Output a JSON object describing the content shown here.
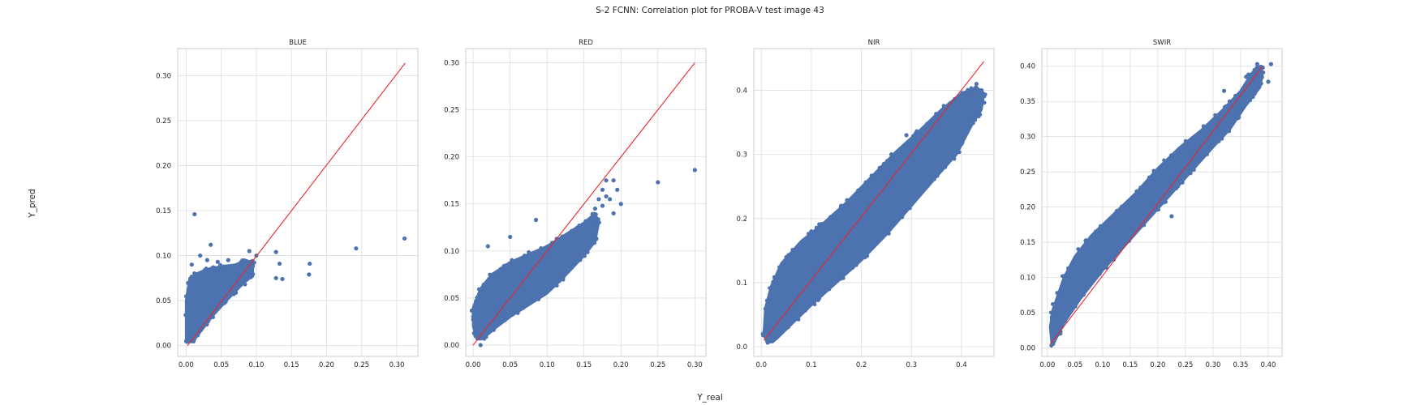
{
  "title": "S-2 FCNN: Correlation plot for PROBA-V test image 43",
  "xlabel": "Y_real",
  "ylabel": "Y_pred",
  "colors": {
    "points": "#4c72b0",
    "reference_line": "#e8262a",
    "grid": "#dddddd"
  },
  "chart_data": [
    {
      "type": "scatter",
      "title": "BLUE",
      "xlim": [
        -0.012,
        0.33
      ],
      "ylim": [
        -0.012,
        0.33
      ],
      "xticks": [
        "0.00",
        "0.05",
        "0.10",
        "0.15",
        "0.20",
        "0.25",
        "0.30"
      ],
      "xtick_values": [
        0,
        0.05,
        0.1,
        0.15,
        0.2,
        0.25,
        0.3
      ],
      "yticks": [
        "0.00",
        "0.05",
        "0.10",
        "0.15",
        "0.20",
        "0.25",
        "0.30"
      ],
      "ytick_values": [
        0,
        0.05,
        0.1,
        0.15,
        0.2,
        0.25,
        0.3
      ],
      "reference_line": [
        [
          0.002,
          0.0
        ],
        [
          0.312,
          0.314
        ]
      ],
      "cloud_outline": [
        [
          0.0,
          0.005
        ],
        [
          0.0,
          0.05
        ],
        [
          0.005,
          0.075
        ],
        [
          0.015,
          0.08
        ],
        [
          0.03,
          0.085
        ],
        [
          0.05,
          0.088
        ],
        [
          0.07,
          0.09
        ],
        [
          0.085,
          0.095
        ],
        [
          0.095,
          0.092
        ],
        [
          0.095,
          0.078
        ],
        [
          0.08,
          0.068
        ],
        [
          0.06,
          0.052
        ],
        [
          0.04,
          0.035
        ],
        [
          0.025,
          0.02
        ],
        [
          0.012,
          0.007
        ],
        [
          0.005,
          0.004
        ]
      ],
      "outliers": [
        [
          0.012,
          0.146
        ],
        [
          0.035,
          0.112
        ],
        [
          0.09,
          0.105
        ],
        [
          0.128,
          0.104
        ],
        [
          0.133,
          0.091
        ],
        [
          0.128,
          0.075
        ],
        [
          0.137,
          0.074
        ],
        [
          0.176,
          0.091
        ],
        [
          0.175,
          0.079
        ],
        [
          0.242,
          0.108
        ],
        [
          0.311,
          0.119
        ],
        [
          0.06,
          0.095
        ],
        [
          0.045,
          0.093
        ],
        [
          0.03,
          0.095
        ],
        [
          0.008,
          0.09
        ],
        [
          0.02,
          0.1
        ],
        [
          0.1,
          0.1
        ],
        [
          0.092,
          0.086
        ]
      ]
    },
    {
      "type": "scatter",
      "title": "RED",
      "xlim": [
        -0.01,
        0.315
      ],
      "ylim": [
        -0.012,
        0.315
      ],
      "xticks": [
        "0.00",
        "0.05",
        "0.10",
        "0.15",
        "0.20",
        "0.25",
        "0.30"
      ],
      "xtick_values": [
        0,
        0.05,
        0.1,
        0.15,
        0.2,
        0.25,
        0.3
      ],
      "yticks": [
        "0.00",
        "0.05",
        "0.10",
        "0.15",
        "0.20",
        "0.25",
        "0.30"
      ],
      "ytick_values": [
        0,
        0.05,
        0.1,
        0.15,
        0.2,
        0.25,
        0.3
      ],
      "reference_line": [
        [
          0.0,
          0.0
        ],
        [
          0.3,
          0.3
        ]
      ],
      "cloud_outline": [
        [
          0.0,
          0.02
        ],
        [
          0.0,
          0.04
        ],
        [
          0.01,
          0.06
        ],
        [
          0.025,
          0.075
        ],
        [
          0.05,
          0.088
        ],
        [
          0.07,
          0.095
        ],
        [
          0.1,
          0.105
        ],
        [
          0.13,
          0.12
        ],
        [
          0.15,
          0.13
        ],
        [
          0.165,
          0.14
        ],
        [
          0.17,
          0.13
        ],
        [
          0.165,
          0.11
        ],
        [
          0.15,
          0.095
        ],
        [
          0.12,
          0.07
        ],
        [
          0.1,
          0.055
        ],
        [
          0.08,
          0.045
        ],
        [
          0.05,
          0.03
        ],
        [
          0.03,
          0.018
        ],
        [
          0.015,
          0.008
        ],
        [
          0.005,
          0.006
        ]
      ],
      "outliers": [
        [
          0.02,
          0.105
        ],
        [
          0.05,
          0.115
        ],
        [
          0.085,
          0.133
        ],
        [
          0.175,
          0.165
        ],
        [
          0.18,
          0.175
        ],
        [
          0.19,
          0.175
        ],
        [
          0.195,
          0.165
        ],
        [
          0.19,
          0.14
        ],
        [
          0.175,
          0.148
        ],
        [
          0.185,
          0.155
        ],
        [
          0.2,
          0.15
        ],
        [
          0.25,
          0.173
        ],
        [
          0.3,
          0.186
        ],
        [
          0.17,
          0.155
        ],
        [
          0.18,
          0.158
        ],
        [
          0.165,
          0.145
        ],
        [
          0.01,
          0.0
        ]
      ]
    },
    {
      "type": "scatter",
      "title": "NIR",
      "xlim": [
        -0.015,
        0.465
      ],
      "ylim": [
        -0.015,
        0.465
      ],
      "xticks": [
        "0.0",
        "0.1",
        "0.2",
        "0.3",
        "0.4"
      ],
      "xtick_values": [
        0.0,
        0.1,
        0.2,
        0.3,
        0.4
      ],
      "yticks": [
        "0.0",
        "0.1",
        "0.2",
        "0.3",
        "0.4"
      ],
      "ytick_values": [
        0.0,
        0.1,
        0.2,
        0.3,
        0.4
      ],
      "reference_line": [
        [
          0.005,
          0.01
        ],
        [
          0.445,
          0.445
        ]
      ],
      "cloud_outline": [
        [
          0.005,
          0.02
        ],
        [
          0.008,
          0.06
        ],
        [
          0.02,
          0.095
        ],
        [
          0.04,
          0.13
        ],
        [
          0.08,
          0.165
        ],
        [
          0.12,
          0.19
        ],
        [
          0.17,
          0.225
        ],
        [
          0.22,
          0.265
        ],
        [
          0.27,
          0.305
        ],
        [
          0.32,
          0.34
        ],
        [
          0.36,
          0.37
        ],
        [
          0.4,
          0.395
        ],
        [
          0.43,
          0.405
        ],
        [
          0.445,
          0.395
        ],
        [
          0.44,
          0.37
        ],
        [
          0.42,
          0.345
        ],
        [
          0.39,
          0.3
        ],
        [
          0.35,
          0.265
        ],
        [
          0.3,
          0.22
        ],
        [
          0.25,
          0.175
        ],
        [
          0.2,
          0.135
        ],
        [
          0.15,
          0.1
        ],
        [
          0.1,
          0.065
        ],
        [
          0.06,
          0.035
        ],
        [
          0.03,
          0.012
        ],
        [
          0.012,
          0.005
        ]
      ],
      "outliers": [
        [
          0.43,
          0.41
        ],
        [
          0.44,
          0.4
        ],
        [
          0.245,
          0.285
        ],
        [
          0.26,
          0.3
        ],
        [
          0.38,
          0.38
        ],
        [
          0.41,
          0.39
        ],
        [
          0.29,
          0.33
        ],
        [
          0.1,
          0.18
        ],
        [
          0.05,
          0.14
        ]
      ]
    },
    {
      "type": "scatter",
      "title": "SWIR",
      "xlim": [
        -0.01,
        0.425
      ],
      "ylim": [
        -0.012,
        0.425
      ],
      "xticks": [
        "0.00",
        "0.05",
        "0.10",
        "0.15",
        "0.20",
        "0.25",
        "0.30",
        "0.35",
        "0.40"
      ],
      "xtick_values": [
        0,
        0.05,
        0.1,
        0.15,
        0.2,
        0.25,
        0.3,
        0.35,
        0.4
      ],
      "yticks": [
        "0.00",
        "0.05",
        "0.10",
        "0.15",
        "0.20",
        "0.25",
        "0.30",
        "0.35",
        "0.40"
      ],
      "ytick_values": [
        0,
        0.05,
        0.1,
        0.15,
        0.2,
        0.25,
        0.3,
        0.35,
        0.4
      ],
      "reference_line": [
        [
          0.005,
          0.005
        ],
        [
          0.39,
          0.4
        ]
      ],
      "cloud_outline": [
        [
          0.008,
          0.005
        ],
        [
          0.005,
          0.03
        ],
        [
          0.01,
          0.055
        ],
        [
          0.03,
          0.1
        ],
        [
          0.05,
          0.13
        ],
        [
          0.08,
          0.16
        ],
        [
          0.12,
          0.19
        ],
        [
          0.16,
          0.22
        ],
        [
          0.2,
          0.255
        ],
        [
          0.24,
          0.285
        ],
        [
          0.28,
          0.31
        ],
        [
          0.32,
          0.34
        ],
        [
          0.35,
          0.365
        ],
        [
          0.37,
          0.39
        ],
        [
          0.385,
          0.4
        ],
        [
          0.39,
          0.39
        ],
        [
          0.385,
          0.37
        ],
        [
          0.36,
          0.345
        ],
        [
          0.33,
          0.31
        ],
        [
          0.3,
          0.285
        ],
        [
          0.26,
          0.25
        ],
        [
          0.22,
          0.215
        ],
        [
          0.18,
          0.18
        ],
        [
          0.14,
          0.145
        ],
        [
          0.1,
          0.11
        ],
        [
          0.06,
          0.07
        ],
        [
          0.03,
          0.035
        ],
        [
          0.015,
          0.012
        ]
      ],
      "outliers": [
        [
          0.38,
          0.403
        ],
        [
          0.39,
          0.398
        ],
        [
          0.405,
          0.403
        ],
        [
          0.4,
          0.378
        ],
        [
          0.32,
          0.365
        ],
        [
          0.33,
          0.35
        ],
        [
          0.225,
          0.187
        ],
        [
          0.26,
          0.27
        ],
        [
          0.28,
          0.3
        ],
        [
          0.3,
          0.32
        ],
        [
          0.35,
          0.35
        ],
        [
          0.36,
          0.385
        ]
      ]
    }
  ]
}
